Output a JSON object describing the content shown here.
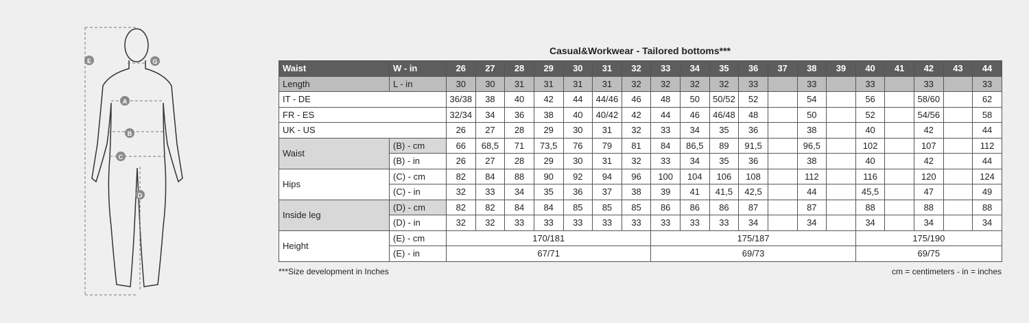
{
  "figure": {
    "markers": [
      "E",
      "G",
      "A",
      "B",
      "C",
      "D"
    ]
  },
  "title": "Casual&Workwear - Tailored bottoms***",
  "table": {
    "header": {
      "label": "Waist",
      "unit": "W - in",
      "sizes": [
        "26",
        "27",
        "28",
        "29",
        "30",
        "31",
        "32",
        "33",
        "34",
        "35",
        "36",
        "37",
        "38",
        "39",
        "40",
        "41",
        "42",
        "43",
        "44"
      ]
    },
    "rows": [
      {
        "label": "Length",
        "unit": "L - in",
        "cells": [
          "30",
          "30",
          "31",
          "31",
          "31",
          "31",
          "32",
          "32",
          "32",
          "32",
          "33",
          null,
          "33",
          null,
          "33",
          null,
          "33",
          null,
          "33"
        ]
      },
      {
        "label": "IT - DE",
        "cells": [
          "36/38",
          "38",
          "40",
          "42",
          "44",
          "44/46",
          "46",
          "48",
          "50",
          "50/52",
          "52",
          null,
          "54",
          null,
          "56",
          null,
          "58/60",
          null,
          "62"
        ]
      },
      {
        "label": "FR - ES",
        "cells": [
          "32/34",
          "34",
          "36",
          "38",
          "40",
          "40/42",
          "42",
          "44",
          "46",
          "46/48",
          "48",
          null,
          "50",
          null,
          "52",
          null,
          "54/56",
          null,
          "58"
        ]
      },
      {
        "label": "UK  - US",
        "cells": [
          "26",
          "27",
          "28",
          "29",
          "30",
          "31",
          "32",
          "33",
          "34",
          "35",
          "36",
          null,
          "38",
          null,
          "40",
          null,
          "42",
          null,
          "44"
        ]
      }
    ],
    "groups": [
      {
        "label": "Waist",
        "rows": [
          {
            "unit": "(B) - cm",
            "cells": [
              "66",
              "68,5",
              "71",
              "73,5",
              "76",
              "79",
              "81",
              "84",
              "86,5",
              "89",
              "91,5",
              null,
              "96,5",
              null,
              "102",
              null,
              "107",
              null,
              "112"
            ]
          },
          {
            "unit": "(B) - in",
            "cells": [
              "26",
              "27",
              "28",
              "29",
              "30",
              "31",
              "32",
              "33",
              "34",
              "35",
              "36",
              null,
              "38",
              null,
              "40",
              null,
              "42",
              null,
              "44"
            ]
          }
        ]
      },
      {
        "label": "Hips",
        "rows": [
          {
            "unit": "(C) - cm",
            "cells": [
              "82",
              "84",
              "88",
              "90",
              "92",
              "94",
              "96",
              "100",
              "104",
              "106",
              "108",
              null,
              "112",
              null,
              "116",
              null,
              "120",
              null,
              "124"
            ]
          },
          {
            "unit": "(C) - in",
            "cells": [
              "32",
              "33",
              "34",
              "35",
              "36",
              "37",
              "38",
              "39",
              "41",
              "41,5",
              "42,5",
              null,
              "44",
              null,
              "45,5",
              null,
              "47",
              null,
              "49"
            ]
          }
        ]
      },
      {
        "label": "Inside leg",
        "rows": [
          {
            "unit": "(D) - cm",
            "cells": [
              "82",
              "82",
              "84",
              "84",
              "85",
              "85",
              "85",
              "86",
              "86",
              "86",
              "87",
              null,
              "87",
              null,
              "88",
              null,
              "88",
              null,
              "88"
            ]
          },
          {
            "unit": "(D) - in",
            "cells": [
              "32",
              "32",
              "33",
              "33",
              "33",
              "33",
              "33",
              "33",
              "33",
              "33",
              "34",
              null,
              "34",
              null,
              "34",
              null,
              "34",
              null,
              "34"
            ]
          }
        ]
      },
      {
        "label": "Height",
        "rows": [
          {
            "unit": "(E) - cm",
            "cells": [
              "170/181",
              "175/187",
              "175/190"
            ]
          },
          {
            "unit": "(E) - in",
            "cells": [
              "67/71",
              "69/73",
              "69/75"
            ]
          }
        ]
      }
    ]
  },
  "footnote": "***Size development in Inches",
  "legend": "cm = centimeters - in = inches"
}
